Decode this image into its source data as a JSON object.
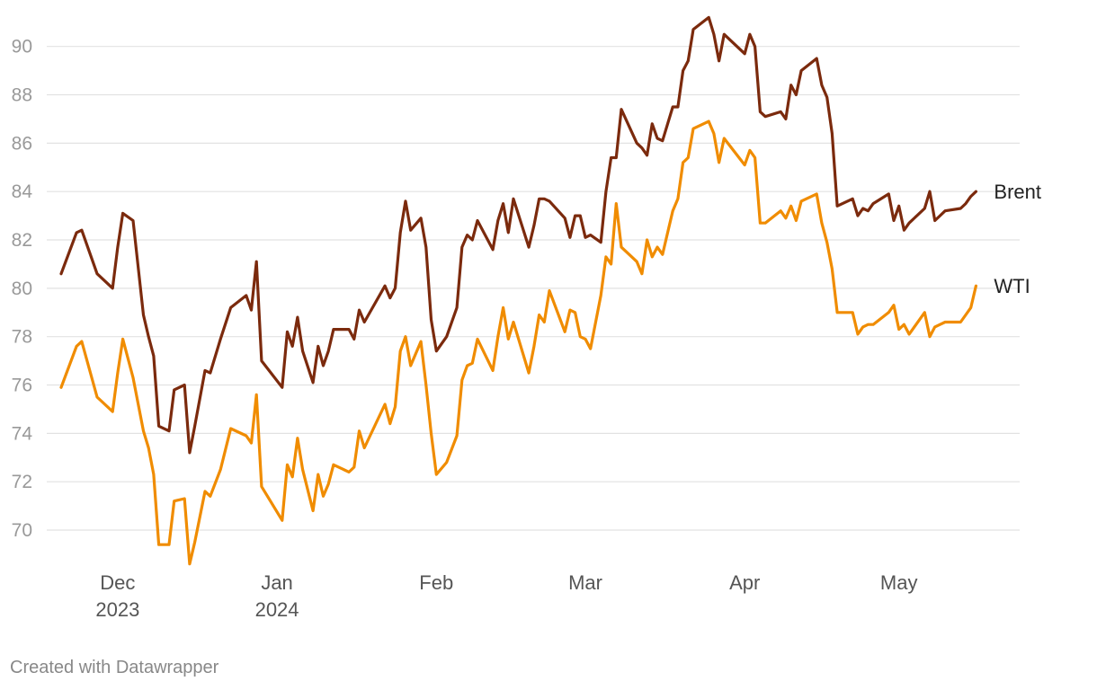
{
  "credit": "Created with Datawrapper",
  "chart_data": {
    "type": "line",
    "title": "",
    "xlabel": "",
    "ylabel": "",
    "ylim": [
      68.7,
      91.4
    ],
    "xlim": [
      "2023-11-20",
      "2024-05-21"
    ],
    "grid": true,
    "yticks": [
      70,
      72,
      74,
      76,
      78,
      80,
      82,
      84,
      86,
      88,
      90
    ],
    "xticks": [
      {
        "date": "2023-12-01",
        "label": "Dec",
        "sublabel": "2023"
      },
      {
        "date": "2024-01-01",
        "label": "Jan",
        "sublabel": "2024"
      },
      {
        "date": "2024-02-01",
        "label": "Feb",
        "sublabel": ""
      },
      {
        "date": "2024-03-01",
        "label": "Mar",
        "sublabel": ""
      },
      {
        "date": "2024-04-01",
        "label": "Apr",
        "sublabel": ""
      },
      {
        "date": "2024-05-01",
        "label": "May",
        "sublabel": ""
      }
    ],
    "x": [
      "2023-11-20",
      "2023-11-23",
      "2023-11-24",
      "2023-11-27",
      "2023-11-30",
      "2023-12-01",
      "2023-12-02",
      "2023-12-04",
      "2023-12-06",
      "2023-12-07",
      "2023-12-08",
      "2023-12-09",
      "2023-12-11",
      "2023-12-12",
      "2023-12-14",
      "2023-12-15",
      "2023-12-16",
      "2023-12-18",
      "2023-12-19",
      "2023-12-21",
      "2023-12-23",
      "2023-12-26",
      "2023-12-27",
      "2023-12-28",
      "2023-12-29",
      "2024-01-02",
      "2024-01-03",
      "2024-01-04",
      "2024-01-05",
      "2024-01-06",
      "2024-01-08",
      "2024-01-09",
      "2024-01-10",
      "2024-01-11",
      "2024-01-12",
      "2024-01-15",
      "2024-01-16",
      "2024-01-17",
      "2024-01-18",
      "2024-01-22",
      "2024-01-23",
      "2024-01-24",
      "2024-01-25",
      "2024-01-26",
      "2024-01-27",
      "2024-01-29",
      "2024-01-30",
      "2024-01-31",
      "2024-02-01",
      "2024-02-03",
      "2024-02-05",
      "2024-02-06",
      "2024-02-07",
      "2024-02-08",
      "2024-02-09",
      "2024-02-12",
      "2024-02-13",
      "2024-02-14",
      "2024-02-15",
      "2024-02-16",
      "2024-02-19",
      "2024-02-20",
      "2024-02-21",
      "2024-02-22",
      "2024-02-23",
      "2024-02-26",
      "2024-02-27",
      "2024-02-28",
      "2024-02-29",
      "2024-03-01",
      "2024-03-02",
      "2024-03-04",
      "2024-03-05",
      "2024-03-06",
      "2024-03-07",
      "2024-03-08",
      "2024-03-11",
      "2024-03-12",
      "2024-03-13",
      "2024-03-14",
      "2024-03-15",
      "2024-03-16",
      "2024-03-18",
      "2024-03-19",
      "2024-03-20",
      "2024-03-21",
      "2024-03-22",
      "2024-03-25",
      "2024-03-26",
      "2024-03-27",
      "2024-03-28",
      "2024-04-01",
      "2024-04-02",
      "2024-04-03",
      "2024-04-04",
      "2024-04-05",
      "2024-04-08",
      "2024-04-09",
      "2024-04-10",
      "2024-04-11",
      "2024-04-12",
      "2024-04-15",
      "2024-04-16",
      "2024-04-17",
      "2024-04-18",
      "2024-04-19",
      "2024-04-22",
      "2024-04-23",
      "2024-04-24",
      "2024-04-25",
      "2024-04-26",
      "2024-04-29",
      "2024-04-30",
      "2024-05-01",
      "2024-05-02",
      "2024-05-03",
      "2024-05-06",
      "2024-05-07",
      "2024-05-08",
      "2024-05-09",
      "2024-05-10",
      "2024-05-13",
      "2024-05-14",
      "2024-05-15",
      "2024-05-16"
    ],
    "series": [
      {
        "name": "Brent",
        "color": "#7b2a0d",
        "values": [
          80.6,
          82.3,
          82.4,
          80.6,
          80.0,
          81.7,
          83.1,
          82.8,
          78.9,
          78.0,
          77.2,
          74.3,
          74.1,
          75.8,
          76.0,
          73.2,
          74.3,
          76.6,
          76.5,
          77.9,
          79.2,
          79.7,
          79.1,
          81.1,
          77.0,
          75.9,
          78.2,
          77.6,
          78.8,
          77.4,
          76.1,
          77.6,
          76.8,
          77.4,
          78.3,
          78.3,
          77.9,
          79.1,
          78.6,
          80.1,
          79.6,
          80.0,
          82.3,
          83.6,
          82.4,
          82.9,
          81.7,
          78.7,
          77.4,
          78.0,
          79.2,
          81.7,
          82.2,
          82.0,
          82.8,
          81.6,
          82.8,
          83.5,
          82.3,
          83.7,
          81.7,
          82.6,
          83.7,
          83.7,
          83.6,
          82.9,
          82.1,
          83.0,
          83.0,
          82.1,
          82.2,
          81.9,
          84.0,
          85.4,
          85.4,
          87.4,
          86.0,
          85.8,
          85.5,
          86.8,
          86.2,
          86.1,
          87.5,
          87.5,
          89.0,
          89.4,
          90.7,
          91.2,
          90.5,
          89.4,
          90.5,
          89.7,
          90.5,
          90.0,
          87.3,
          87.1,
          87.3,
          87.0,
          88.4,
          88.0,
          89.0,
          89.5,
          88.4,
          87.9,
          86.4,
          83.4,
          83.7,
          83.0,
          83.3,
          83.2,
          83.5,
          83.9,
          82.8,
          83.4,
          82.4,
          82.7,
          83.3,
          84.0,
          82.8,
          83.0,
          83.2,
          83.3,
          83.5,
          83.8,
          84.0
        ]
      },
      {
        "name": "WTI",
        "color": "#f08c00",
        "values": [
          75.9,
          77.6,
          77.8,
          75.5,
          74.9,
          76.5,
          77.9,
          76.3,
          74.1,
          73.4,
          72.3,
          69.4,
          69.4,
          71.2,
          71.3,
          68.6,
          69.5,
          71.6,
          71.4,
          72.5,
          74.2,
          73.9,
          73.6,
          75.6,
          71.8,
          70.4,
          72.7,
          72.2,
          73.8,
          72.5,
          70.8,
          72.3,
          71.4,
          71.9,
          72.7,
          72.4,
          72.6,
          74.1,
          73.4,
          75.2,
          74.4,
          75.1,
          77.4,
          78.0,
          76.8,
          77.8,
          76.0,
          74.0,
          72.3,
          72.8,
          73.9,
          76.2,
          76.8,
          76.9,
          77.9,
          76.6,
          78.0,
          79.2,
          77.9,
          78.6,
          76.5,
          77.6,
          78.9,
          78.6,
          79.9,
          78.2,
          79.1,
          79.0,
          78.0,
          77.9,
          77.5,
          79.7,
          81.3,
          81.0,
          83.5,
          81.7,
          81.1,
          80.6,
          82.0,
          81.3,
          81.7,
          81.4,
          83.2,
          83.7,
          85.2,
          85.4,
          86.6,
          86.9,
          86.4,
          85.2,
          86.2,
          85.1,
          85.7,
          85.4,
          82.7,
          82.7,
          83.2,
          82.9,
          83.4,
          82.8,
          83.6,
          83.9,
          82.7,
          81.9,
          80.8,
          79.0,
          79.0,
          78.1,
          78.4,
          78.5,
          78.5,
          79.0,
          79.3,
          78.3,
          78.5,
          78.1,
          79.0,
          78.0,
          78.4,
          78.5,
          78.6,
          78.6,
          78.9,
          79.2,
          80.1
        ]
      }
    ]
  }
}
